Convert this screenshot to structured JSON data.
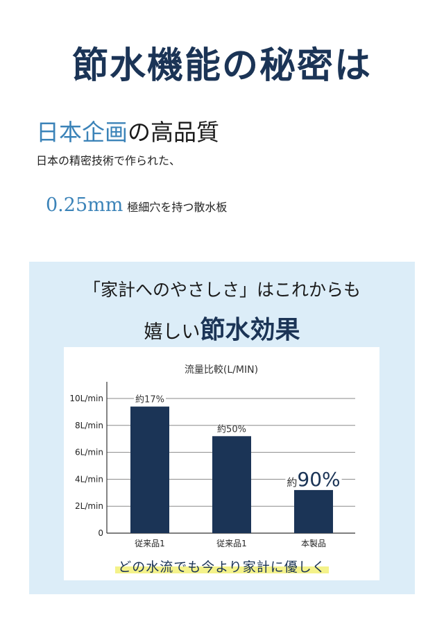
{
  "title": "節水機能の秘密は",
  "subheading": {
    "accent": "日本企画",
    "rest": "の高品質"
  },
  "description": "日本の精密技術で作られた、",
  "spec": {
    "value": "0.25mm",
    "text": "極細穴を持つ散水板"
  },
  "panel": {
    "line1": "「家計へのやさしさ」はこれからも",
    "line2_normal": "嬉しい",
    "line2_bold": "節水効果",
    "slogan": "どの水流でも今より家計に優しく"
  },
  "colors": {
    "navy": "#1b3456",
    "accent": "#3b83b8",
    "panel_bg": "#dcedf8",
    "highlight": "#f4f28a"
  },
  "chart_data": {
    "type": "bar",
    "title": "流量比較(L/MIN)",
    "categories": [
      "従来品1",
      "従来品1",
      "本製品"
    ],
    "values": [
      9.4,
      7.2,
      3.2
    ],
    "data_labels": [
      {
        "prefix": "約",
        "text": "17%"
      },
      {
        "prefix": "約",
        "text": "50%"
      },
      {
        "prefix": "約",
        "text": "90%"
      }
    ],
    "y_ticks": [
      {
        "value": 10,
        "label": "10L/min"
      },
      {
        "value": 8,
        "label": "8L/min"
      },
      {
        "value": 6,
        "label": "6L/min"
      },
      {
        "value": 4,
        "label": "4L/min"
      },
      {
        "value": 2,
        "label": "2L/min"
      },
      {
        "value": 0,
        "label": "0"
      }
    ],
    "ylim": [
      0,
      10
    ],
    "grid": true,
    "bar_color": "#1b3456"
  }
}
